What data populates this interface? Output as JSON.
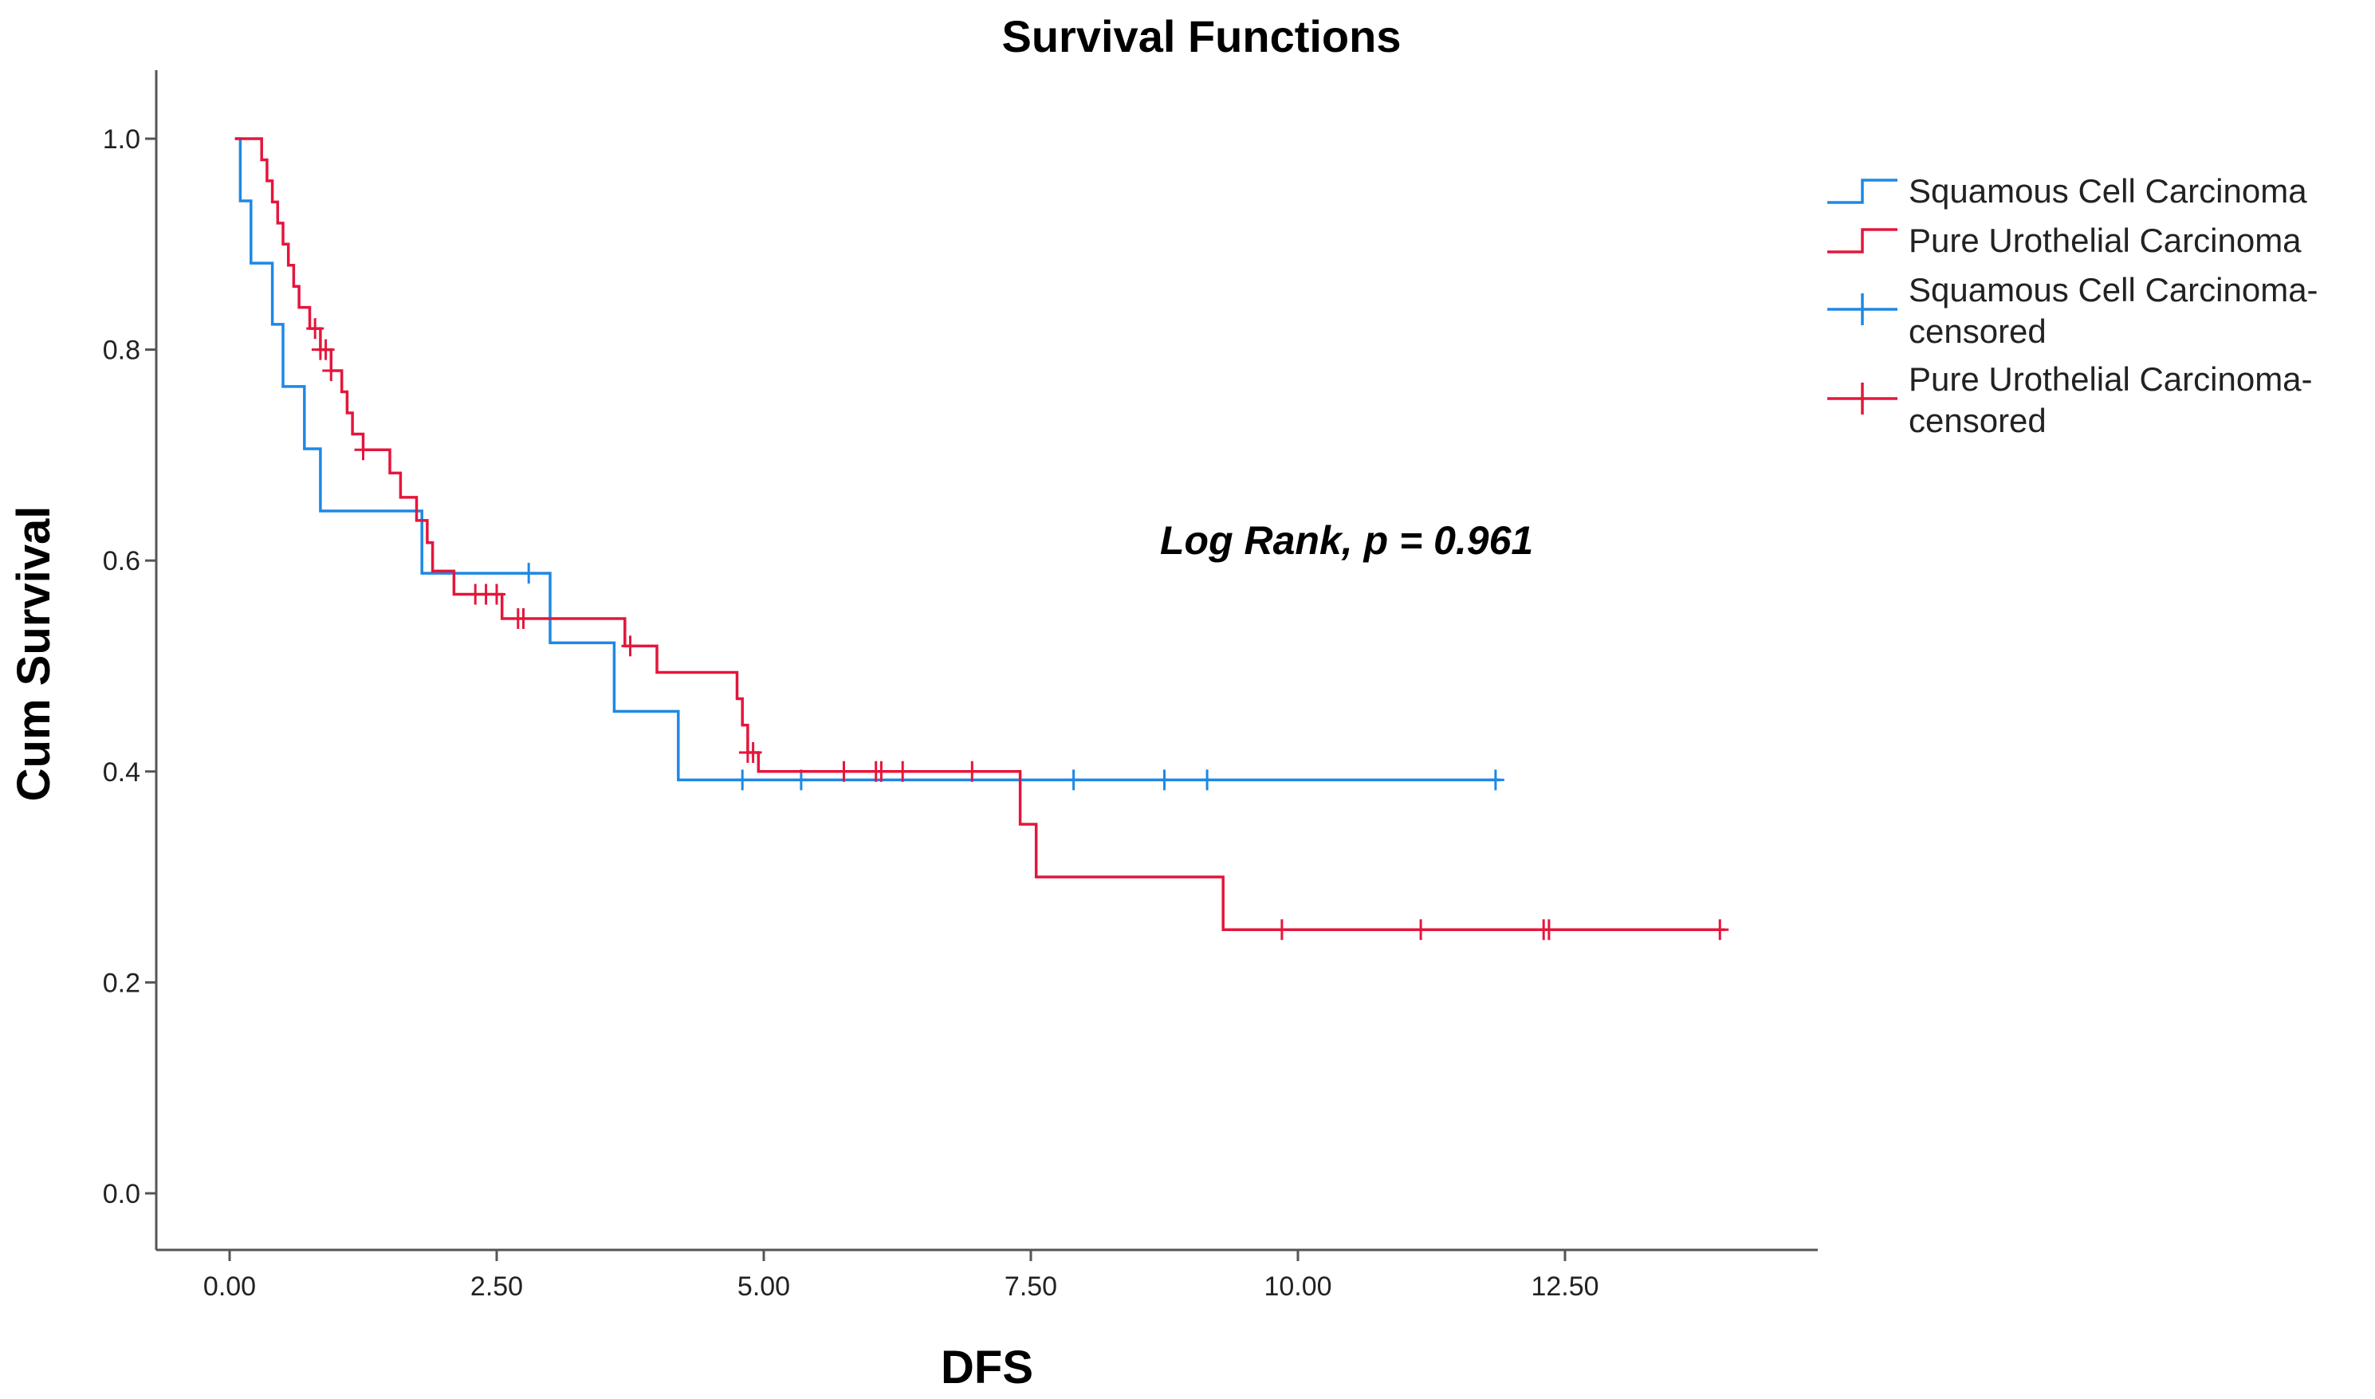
{
  "chart_data": {
    "type": "line",
    "title": "Survival Functions",
    "xlabel": "DFS",
    "ylabel": "Cum Survival",
    "xlim": [
      0,
      15
    ],
    "ylim": [
      0,
      1.0
    ],
    "x_ticks": [
      "0.00",
      "2.50",
      "5.00",
      "7.50",
      "10.00",
      "12.50"
    ],
    "y_ticks": [
      "0.0",
      "0.2",
      "0.4",
      "0.6",
      "0.8",
      "1.0"
    ],
    "grid": false,
    "legend_position": "top-right",
    "annotation": "Log Rank, p = 0.961",
    "legend": [
      {
        "label": "Squamous Cell Carcinoma",
        "kind": "line",
        "color": "#1e88e5"
      },
      {
        "label": "Pure Urothelial Carcinoma",
        "kind": "line",
        "color": "#e4163c"
      },
      {
        "label": "Squamous Cell Carcinoma-\ncensored",
        "kind": "censor",
        "color": "#1e88e5"
      },
      {
        "label": "Pure Urothelial Carcinoma-\ncensored",
        "kind": "censor",
        "color": "#e4163c"
      }
    ],
    "series": [
      {
        "name": "Squamous Cell Carcinoma",
        "color": "#1e88e5",
        "steps": [
          [
            0.05,
            1.0
          ],
          [
            0.1,
            0.941
          ],
          [
            0.2,
            0.882
          ],
          [
            0.4,
            0.824
          ],
          [
            0.5,
            0.765
          ],
          [
            0.7,
            0.706
          ],
          [
            0.85,
            0.647
          ],
          [
            1.8,
            0.588
          ],
          [
            3.0,
            0.522
          ],
          [
            3.6,
            0.457
          ],
          [
            4.2,
            0.392
          ]
        ],
        "end": 11.9,
        "censored": [
          2.8,
          4.8,
          5.35,
          7.9,
          8.75,
          9.15,
          11.85
        ]
      },
      {
        "name": "Pure Urothelial Carcinoma",
        "color": "#e4163c",
        "steps": [
          [
            0.05,
            1.0
          ],
          [
            0.3,
            0.98
          ],
          [
            0.35,
            0.96
          ],
          [
            0.4,
            0.94
          ],
          [
            0.45,
            0.92
          ],
          [
            0.5,
            0.9
          ],
          [
            0.55,
            0.88
          ],
          [
            0.6,
            0.86
          ],
          [
            0.65,
            0.84
          ],
          [
            0.75,
            0.82
          ],
          [
            0.85,
            0.8
          ],
          [
            0.95,
            0.78
          ],
          [
            1.05,
            0.76
          ],
          [
            1.1,
            0.74
          ],
          [
            1.15,
            0.72
          ],
          [
            1.25,
            0.705
          ],
          [
            1.5,
            0.683
          ],
          [
            1.6,
            0.66
          ],
          [
            1.75,
            0.638
          ],
          [
            1.85,
            0.617
          ],
          [
            1.9,
            0.59
          ],
          [
            2.1,
            0.568
          ],
          [
            2.55,
            0.545
          ],
          [
            3.7,
            0.519
          ],
          [
            4.0,
            0.494
          ],
          [
            4.75,
            0.469
          ],
          [
            4.8,
            0.444
          ],
          [
            4.85,
            0.418
          ],
          [
            4.95,
            0.4
          ],
          [
            7.4,
            0.35
          ],
          [
            7.55,
            0.3
          ],
          [
            9.3,
            0.25
          ]
        ],
        "end": 14.0,
        "censored": [
          0.8,
          0.85,
          0.9,
          0.95,
          1.25,
          2.3,
          2.4,
          2.5,
          2.7,
          2.75,
          3.75,
          4.85,
          4.9,
          5.75,
          6.05,
          6.1,
          6.3,
          6.95,
          9.85,
          11.15,
          12.3,
          12.35,
          13.95
        ]
      }
    ]
  }
}
